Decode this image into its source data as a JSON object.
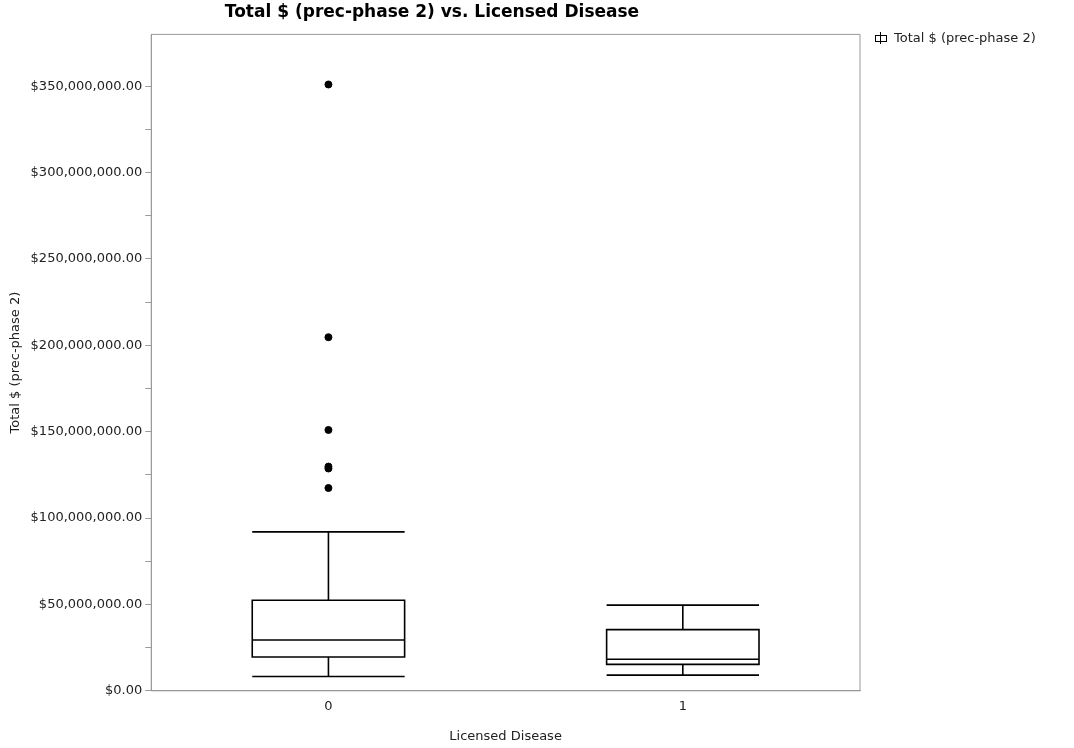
{
  "chart_data": {
    "type": "box",
    "title": "Total $ (prec-phase 2) vs. Licensed Disease",
    "xlabel": "Licensed Disease",
    "ylabel": "Total $ (prec-phase 2)",
    "categories": [
      "0",
      "1"
    ],
    "series": [
      {
        "name": "Total $ (prec-phase 2)",
        "color": "#000000",
        "boxes": [
          {
            "low": 8300000,
            "q1": 19600000,
            "median": 29400000,
            "q3": 52400000,
            "high": 92000000,
            "outliers": [
              117400000,
              128700000,
              129800000,
              151000000,
              204700000,
              351000000
            ]
          },
          {
            "low": 9100000,
            "q1": 15300000,
            "median": 18300000,
            "q3": 35400000,
            "high": 49600000
          }
        ]
      }
    ],
    "ylim": [
      0,
      380000000
    ],
    "yticks": [
      {
        "value": 0,
        "label": "$0.00"
      },
      {
        "value": 25000000,
        "label": null
      },
      {
        "value": 50000000,
        "label": "$50,000,000.00"
      },
      {
        "value": 75000000,
        "label": null
      },
      {
        "value": 100000000,
        "label": "$100,000,000.00"
      },
      {
        "value": 125000000,
        "label": null
      },
      {
        "value": 150000000,
        "label": "$150,000,000.00"
      },
      {
        "value": 175000000,
        "label": null
      },
      {
        "value": 200000000,
        "label": "$200,000,000.00"
      },
      {
        "value": 225000000,
        "label": null
      },
      {
        "value": 250000000,
        "label": "$250,000,000.00"
      },
      {
        "value": 275000000,
        "label": null
      },
      {
        "value": 300000000,
        "label": "$300,000,000.00"
      },
      {
        "value": 325000000,
        "label": null
      },
      {
        "value": 350000000,
        "label": "$350,000,000.00"
      }
    ],
    "grid": false,
    "legend": "top right",
    "marker": "circle"
  }
}
